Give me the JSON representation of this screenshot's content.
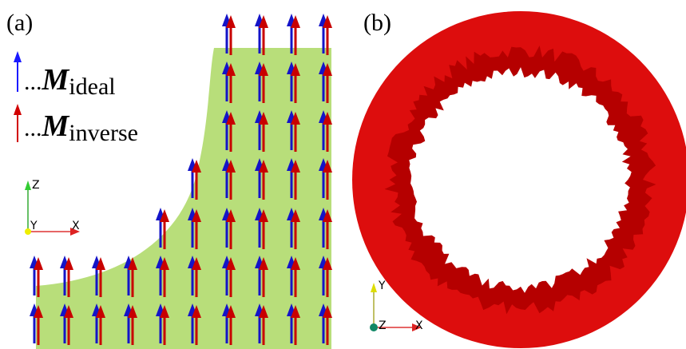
{
  "panels": [
    {
      "label": "(a)",
      "legend": [
        {
          "prefix": "...",
          "symbol": "M",
          "subscript": "ideal"
        },
        {
          "prefix": "...",
          "symbol": "M",
          "subscript": "inverse"
        }
      ],
      "axes": {
        "up": "Z",
        "depth": "Y",
        "right": "X"
      }
    },
    {
      "label": "(b)",
      "axes": {
        "up": "Y",
        "depth": "Z",
        "right": "X"
      }
    }
  ]
}
